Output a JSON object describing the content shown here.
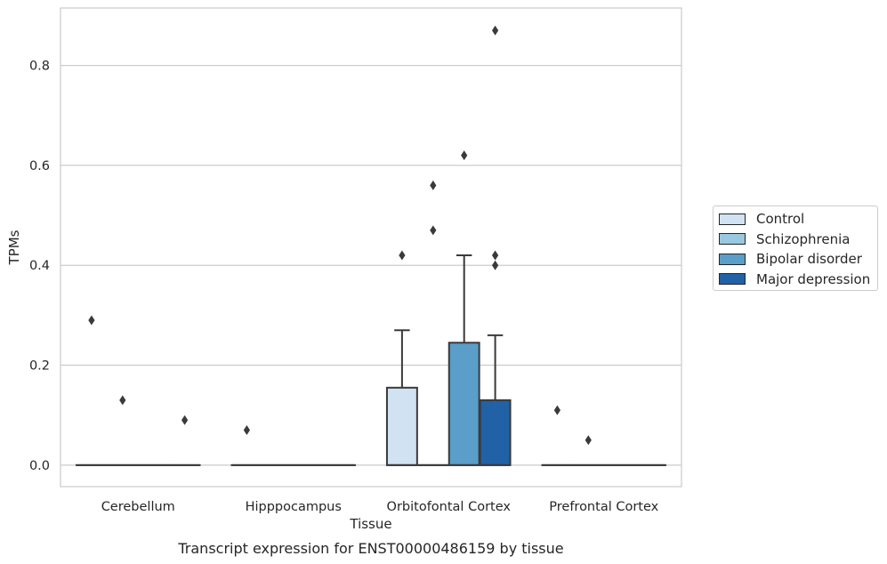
{
  "chart_data": {
    "type": "box",
    "title": "Transcript expression for ENST00000486159 by tissue",
    "xlabel": "Tissue",
    "ylabel": "TPMs",
    "ylim": [
      -0.043,
      0.915
    ],
    "yticks": [
      "0.0",
      "0.2",
      "0.4",
      "0.6",
      "0.8"
    ],
    "categories": [
      "Cerebellum",
      "Hipppocampus",
      "Orbitofontal Cortex",
      "Prefrontal Cortex"
    ],
    "grid": true,
    "legend_position": "right",
    "series": [
      {
        "name": "Control",
        "color": "#d1e2f2",
        "boxes": [
          {
            "q1": 0,
            "median": 0,
            "q3": 0,
            "whisker_low": 0,
            "whisker_high": 0,
            "outliers": [
              0.29
            ]
          },
          {
            "q1": 0,
            "median": 0,
            "q3": 0,
            "whisker_low": 0,
            "whisker_high": 0,
            "outliers": [
              0.07
            ]
          },
          {
            "q1": 0,
            "median": 0,
            "q3": 0.155,
            "whisker_low": 0,
            "whisker_high": 0.27,
            "outliers": [
              0.42
            ]
          },
          {
            "q1": 0,
            "median": 0,
            "q3": 0,
            "whisker_low": 0,
            "whisker_high": 0,
            "outliers": [
              0.11
            ]
          }
        ]
      },
      {
        "name": "Schizophrenia",
        "color": "#9ac8e0",
        "boxes": [
          {
            "q1": 0,
            "median": 0,
            "q3": 0,
            "whisker_low": 0,
            "whisker_high": 0,
            "outliers": [
              0.13
            ]
          },
          {
            "q1": 0,
            "median": 0,
            "q3": 0,
            "whisker_low": 0,
            "whisker_high": 0,
            "outliers": []
          },
          {
            "q1": 0,
            "median": 0,
            "q3": 0,
            "whisker_low": 0,
            "whisker_high": 0,
            "outliers": [
              0.47,
              0.56
            ]
          },
          {
            "q1": 0,
            "median": 0,
            "q3": 0,
            "whisker_low": 0,
            "whisker_high": 0,
            "outliers": [
              0.05
            ]
          }
        ]
      },
      {
        "name": "Bipolar disorder",
        "color": "#5a9ec9",
        "boxes": [
          {
            "q1": 0,
            "median": 0,
            "q3": 0,
            "whisker_low": 0,
            "whisker_high": 0,
            "outliers": []
          },
          {
            "q1": 0,
            "median": 0,
            "q3": 0,
            "whisker_low": 0,
            "whisker_high": 0,
            "outliers": []
          },
          {
            "q1": 0,
            "median": 0,
            "q3": 0.245,
            "whisker_low": 0,
            "whisker_high": 0.42,
            "outliers": [
              0.62
            ]
          },
          {
            "q1": 0,
            "median": 0,
            "q3": 0,
            "whisker_low": 0,
            "whisker_high": 0,
            "outliers": []
          }
        ]
      },
      {
        "name": "Major depression",
        "color": "#2161a6",
        "boxes": [
          {
            "q1": 0,
            "median": 0,
            "q3": 0,
            "whisker_low": 0,
            "whisker_high": 0,
            "outliers": [
              0.09
            ]
          },
          {
            "q1": 0,
            "median": 0,
            "q3": 0,
            "whisker_low": 0,
            "whisker_high": 0,
            "outliers": []
          },
          {
            "q1": 0,
            "median": 0,
            "q3": 0.13,
            "whisker_low": 0,
            "whisker_high": 0.26,
            "outliers": [
              0.4,
              0.42,
              0.87
            ]
          },
          {
            "q1": 0,
            "median": 0,
            "q3": 0,
            "whisker_low": 0,
            "whisker_high": 0,
            "outliers": []
          }
        ]
      }
    ]
  }
}
